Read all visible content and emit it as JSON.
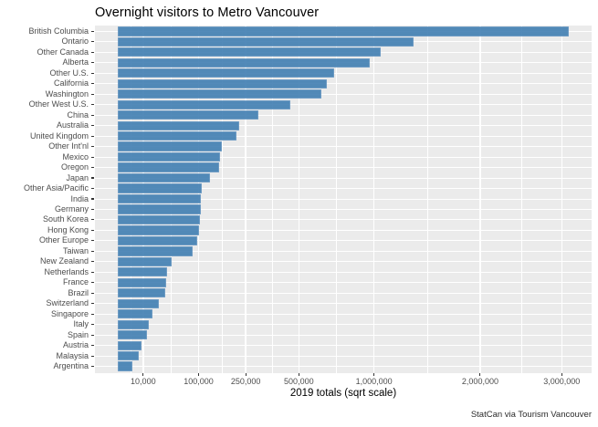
{
  "title": "Overnight visitors to Metro Vancouver",
  "caption": "StatCan via Tourism Vancouver",
  "x_axis": {
    "label": "2019 totals (sqrt scale)",
    "ticks": [
      10000,
      100000,
      250000,
      500000,
      1000000,
      2000000,
      3000000
    ],
    "tick_labels": [
      "10,000",
      "100,000",
      "250,000",
      "500,000",
      "1,000,000",
      "2,000,000",
      "3,000,000"
    ]
  },
  "colors": {
    "bar": "#4682B4",
    "panel_background": "#EBEBEB",
    "gridline": "#FFFFFF",
    "axis_text": "#4D4D4D",
    "tick_mark": "#333333"
  },
  "chart_data": {
    "type": "bar",
    "orientation": "horizontal",
    "title": "Overnight visitors to Metro Vancouver",
    "xlabel": "2019 totals (sqrt scale)",
    "ylabel": "",
    "x_scale": "sqrt",
    "xlim": [
      0,
      3100000
    ],
    "grid": true,
    "categories": [
      "British Columbia",
      "Ontario",
      "Other Canada",
      "Alberta",
      "Other U.S.",
      "California",
      "Washington",
      "Other West U.S.",
      "China",
      "Australia",
      "United Kingdom",
      "Other Int'nl",
      "Mexico",
      "Oregon",
      "Japan",
      "Other Asia/Pacific",
      "India",
      "Germany",
      "South Korea",
      "Hong Kong",
      "Other Europe",
      "Taiwan",
      "New Zealand",
      "Netherlands",
      "France",
      "Brazil",
      "Switzerland",
      "Singapore",
      "Italy",
      "Spain",
      "Austria",
      "Malaysia",
      "Argentina"
    ],
    "values": [
      3100000,
      1330000,
      1050000,
      970000,
      715000,
      665000,
      630000,
      455000,
      300000,
      226000,
      215000,
      166000,
      161000,
      156000,
      131000,
      107000,
      106000,
      105000,
      104000,
      102000,
      97000,
      85000,
      45000,
      38000,
      35500,
      34500,
      26000,
      19000,
      15000,
      13000,
      9000,
      7000,
      3500
    ]
  }
}
